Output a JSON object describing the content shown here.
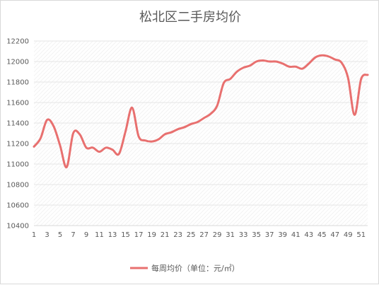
{
  "chart_data": {
    "type": "line",
    "title": "松北区二手房均价",
    "xlabel": "",
    "ylabel": "",
    "ylim": [
      10400,
      12200
    ],
    "yticks": [
      10400,
      10600,
      10800,
      11000,
      11200,
      11400,
      11600,
      11800,
      12000,
      12200
    ],
    "xticks": [
      1,
      3,
      5,
      7,
      9,
      11,
      13,
      15,
      17,
      19,
      21,
      23,
      25,
      27,
      29,
      31,
      33,
      35,
      37,
      39,
      41,
      43,
      45,
      47,
      49,
      51
    ],
    "x": [
      1,
      2,
      3,
      4,
      5,
      6,
      7,
      8,
      9,
      10,
      11,
      12,
      13,
      14,
      15,
      16,
      17,
      18,
      19,
      20,
      21,
      22,
      23,
      24,
      25,
      26,
      27,
      28,
      29,
      30,
      31,
      32,
      33,
      34,
      35,
      36,
      37,
      38,
      39,
      40,
      41,
      42,
      43,
      44,
      45,
      46,
      47,
      48,
      49,
      50,
      51,
      52
    ],
    "series": [
      {
        "name": "每周均价（单位：元/㎡）",
        "color": "#e8706f",
        "values": [
          11170,
          11250,
          11430,
          11370,
          11180,
          10970,
          11300,
          11290,
          11160,
          11160,
          11120,
          11160,
          11140,
          11100,
          11320,
          11550,
          11270,
          11230,
          11220,
          11240,
          11290,
          11310,
          11340,
          11360,
          11390,
          11410,
          11450,
          11490,
          11570,
          11790,
          11830,
          11900,
          11940,
          11960,
          12000,
          12010,
          12000,
          12000,
          11980,
          11950,
          11950,
          11930,
          11980,
          12040,
          12060,
          12050,
          12020,
          11990,
          11840,
          11480,
          11830,
          11870
        ]
      }
    ],
    "grid": true,
    "legend_position": "bottom-center"
  }
}
